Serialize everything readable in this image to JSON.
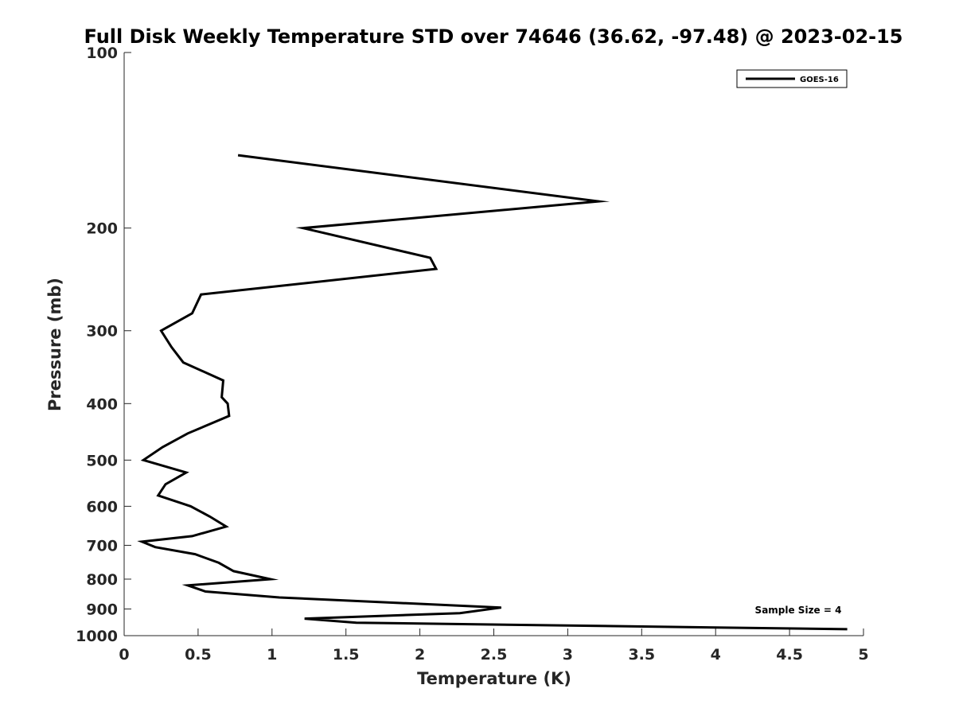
{
  "chart_data": {
    "type": "line",
    "title": "Full Disk Weekly Temperature STD over 74646 (36.62, -97.48) @ 2023-02-15",
    "xlabel": "Temperature (K)",
    "ylabel": "Pressure (mb)",
    "xlim": [
      0,
      5
    ],
    "ylim": [
      100,
      1000
    ],
    "yscale": "log",
    "y_reversed": true,
    "x_ticks": [
      "0",
      "0.5",
      "1",
      "1.5",
      "2",
      "2.5",
      "3",
      "3.5",
      "4",
      "4.5",
      "5"
    ],
    "y_ticks": [
      "100",
      "200",
      "300",
      "400",
      "500",
      "600",
      "700",
      "800",
      "900",
      "1000"
    ],
    "grid": false,
    "legend_position": "top-right",
    "series": [
      {
        "name": "GOES-16",
        "color": "#000000",
        "x": [
          0.77,
          3.21,
          1.21,
          2.07,
          2.11,
          0.52,
          0.46,
          0.25,
          0.32,
          0.4,
          0.67,
          0.66,
          0.7,
          0.71,
          0.43,
          0.26,
          0.13,
          0.42,
          0.28,
          0.23,
          0.45,
          0.58,
          0.69,
          0.46,
          0.12,
          0.21,
          0.48,
          0.64,
          0.74,
          0.99,
          0.43,
          0.55,
          1.05,
          2.55,
          2.27,
          1.22,
          1.57,
          4.89
        ],
        "y": [
          150,
          180,
          200,
          225,
          235,
          260,
          280,
          300,
          320,
          340,
          365,
          390,
          400,
          420,
          450,
          475,
          500,
          525,
          550,
          575,
          600,
          625,
          650,
          675,
          690,
          705,
          725,
          750,
          775,
          800,
          820,
          840,
          860,
          895,
          915,
          935,
          950,
          975
        ]
      }
    ],
    "annotations": [
      "Sample Size = 4"
    ]
  }
}
